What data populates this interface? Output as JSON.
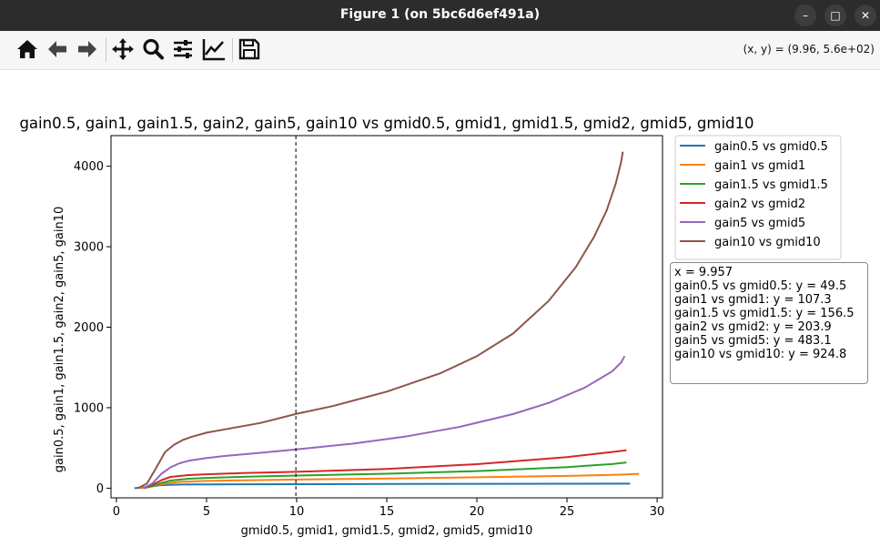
{
  "window": {
    "title": "Figure 1 (on 5bc6d6ef491a)",
    "controls": [
      {
        "name": "minimize",
        "glyph": "–"
      },
      {
        "name": "maximize",
        "glyph": "□"
      },
      {
        "name": "close",
        "glyph": "✕"
      }
    ]
  },
  "toolbar": {
    "buttons": [
      {
        "name": "home",
        "icon": "home-icon"
      },
      {
        "name": "back",
        "icon": "arrow-left-icon"
      },
      {
        "name": "forward",
        "icon": "arrow-right-icon"
      },
      {
        "name": "pan",
        "icon": "move-icon"
      },
      {
        "name": "zoom",
        "icon": "magnifier-icon"
      },
      {
        "name": "configure-subplots",
        "icon": "sliders-icon"
      },
      {
        "name": "edit-axis",
        "icon": "line-chart-icon"
      },
      {
        "name": "save",
        "icon": "floppy-disk-icon"
      }
    ],
    "coords": "(x, y) = (9.96, 5.6e+02)"
  },
  "chart_data": {
    "type": "line",
    "title": "gain0.5, gain1, gain1.5, gain2, gain5, gain10 vs gmid0.5, gmid1, gmid1.5, gmid2, gmid5, gmid10",
    "xlabel": "gmid0.5, gmid1, gmid1.5, gmid2, gmid5, gmid10",
    "ylabel": "gain0.5, gain1, gain1.5, gain2, gain5, gain10",
    "xlim": [
      -0.3,
      30.3
    ],
    "ylim": [
      -120,
      4380
    ],
    "xticks": [
      0,
      5,
      10,
      15,
      20,
      25,
      30
    ],
    "yticks": [
      0,
      1000,
      2000,
      3000,
      4000
    ],
    "grid": false,
    "legend_position": "outside-top-right",
    "cursor_x": 9.957,
    "series": [
      {
        "name": "gain0.5 vs gmid0.5",
        "color": "#1f77b4",
        "x": [
          1.0,
          1.5,
          2.0,
          2.5,
          3,
          4,
          5,
          7,
          10,
          15,
          20,
          25,
          28.5
        ],
        "y": [
          0,
          10,
          25,
          38,
          43,
          46,
          47,
          48,
          49.5,
          52,
          54,
          55,
          56
        ]
      },
      {
        "name": "gain1 vs gmid1",
        "color": "#ff7f0e",
        "x": [
          1.3,
          1.8,
          2.3,
          2.8,
          3.5,
          5,
          7,
          10,
          15,
          20,
          25,
          28,
          29.0
        ],
        "y": [
          0,
          15,
          40,
          62,
          78,
          90,
          98,
          107.3,
          120,
          135,
          152,
          168,
          178
        ]
      },
      {
        "name": "gain1.5 vs gmid1.5",
        "color": "#2ca02c",
        "x": [
          1.5,
          2.0,
          2.5,
          3.0,
          4,
          5,
          7,
          10,
          15,
          20,
          25,
          27.5,
          28.3
        ],
        "y": [
          0,
          25,
          65,
          95,
          118,
          128,
          141,
          156.5,
          180,
          212,
          262,
          300,
          320
        ]
      },
      {
        "name": "gain2 vs gmid2",
        "color": "#d62728",
        "x": [
          1.5,
          2.0,
          2.5,
          3.0,
          4,
          5,
          7,
          10,
          15,
          20,
          25,
          27.5,
          28.3
        ],
        "y": [
          0,
          40,
          100,
          140,
          163,
          173,
          187,
          203.9,
          240,
          298,
          385,
          450,
          470
        ]
      },
      {
        "name": "gain5 vs gmid5",
        "color": "#9467bd",
        "x": [
          1.5,
          2.0,
          2.5,
          3.0,
          3.5,
          4,
          5,
          6,
          8,
          10,
          13,
          16,
          19,
          22,
          24,
          26,
          27.5,
          28.0,
          28.2
        ],
        "y": [
          0,
          60,
          180,
          260,
          310,
          340,
          375,
          400,
          440,
          483.1,
          550,
          640,
          760,
          920,
          1060,
          1250,
          1450,
          1560,
          1640
        ]
      },
      {
        "name": "gain10 vs gmid10",
        "color": "#8c564b",
        "x": [
          1.2,
          1.7,
          2.2,
          2.7,
          3.2,
          3.7,
          4.2,
          5,
          6,
          8,
          10,
          12,
          15,
          18,
          20,
          22,
          24,
          25.5,
          26.5,
          27.2,
          27.7,
          28.0,
          28.1
        ],
        "y": [
          0,
          60,
          250,
          450,
          540,
          600,
          640,
          690,
          730,
          810,
          924.8,
          1020,
          1200,
          1430,
          1640,
          1920,
          2330,
          2750,
          3120,
          3450,
          3780,
          4050,
          4180
        ]
      }
    ]
  },
  "readout": {
    "lines": [
      "x = 9.957",
      "gain0.5 vs gmid0.5: y = 49.5",
      "gain1 vs gmid1: y = 107.3",
      "gain1.5 vs gmid1.5: y = 156.5",
      "gain2 vs gmid2: y = 203.9",
      "gain5 vs gmid5: y = 483.1",
      "gain10 vs gmid10: y = 924.8"
    ]
  }
}
